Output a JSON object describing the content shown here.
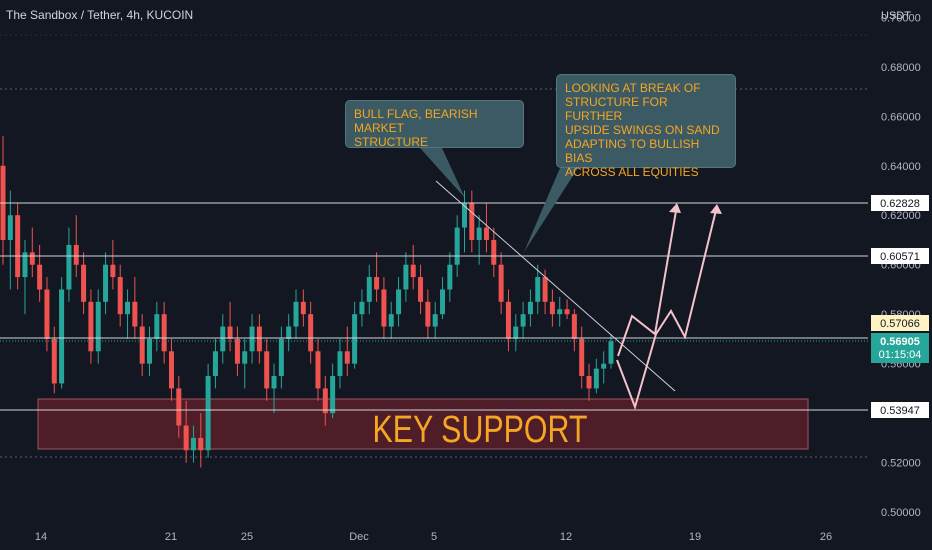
{
  "header": {
    "title": "The Sandbox / Tether, 4h, KUCOIN",
    "currency": "USDT"
  },
  "colors": {
    "background": "#131722",
    "up": "#26a69a",
    "down": "#ef5350",
    "accent_text": "#f5a623",
    "support_zone": "#5a1e28"
  },
  "annotations": {
    "bull_flag": "BULL FLAG, BEARISH MARKET\nSTRUCTURE",
    "break_structure": "LOOKING AT BREAK OF\nSTRUCTURE FOR FURTHER\nUPSIDE SWINGS ON SAND\nADAPTING TO BULLISH BIAS\nACROSS ALL EQUITIES",
    "key_support": "KEY SUPPORT"
  },
  "price_labels": {
    "level_1": "0.62828",
    "level_2": "0.60571",
    "level_3": "0.57066",
    "current": "0.56905",
    "countdown": "01:15:04",
    "level_4": "0.53947"
  },
  "chart_data": {
    "type": "candlestick",
    "y_axis": {
      "ticks": [
        "0.70000",
        "0.68000",
        "0.66000",
        "0.64000",
        "0.62000",
        "0.60000",
        "0.58000",
        "0.56000",
        "0.54000",
        "0.52000",
        "0.50000"
      ],
      "range": [
        0.496,
        0.707
      ]
    },
    "x_axis": {
      "ticks": [
        "14",
        "21",
        "25",
        "Dec",
        "5",
        "12",
        "19",
        "26"
      ]
    },
    "horizontal_levels": [
      0.62828,
      0.60571,
      0.57066,
      0.53947
    ],
    "current_price": 0.56905,
    "support_zone": [
      0.5217,
      0.5425
    ],
    "trendline": {
      "from": [
        1.12,
        0.631
      ],
      "to": [
        10.95,
        0.557
      ]
    },
    "projections": [
      {
        "points": [
          [
            10.4,
            0.554
          ],
          [
            11.1,
            0.574
          ],
          [
            12.0,
            0.566
          ],
          [
            13.9,
            0.628
          ]
        ]
      },
      {
        "points": [
          [
            10.35,
            0.565
          ],
          [
            11.0,
            0.541
          ],
          [
            12.0,
            0.566
          ],
          [
            12.8,
            0.577
          ],
          [
            13.9,
            0.604
          ],
          [
            14.7,
            0.627
          ]
        ]
      }
    ],
    "candles": [
      [
        0.64,
        0.652,
        0.6,
        0.61
      ],
      [
        0.61,
        0.63,
        0.59,
        0.62
      ],
      [
        0.62,
        0.625,
        0.59,
        0.595
      ],
      [
        0.595,
        0.61,
        0.58,
        0.605
      ],
      [
        0.605,
        0.615,
        0.595,
        0.6
      ],
      [
        0.6,
        0.608,
        0.585,
        0.59
      ],
      [
        0.59,
        0.595,
        0.565,
        0.57
      ],
      [
        0.57,
        0.575,
        0.548,
        0.552
      ],
      [
        0.552,
        0.595,
        0.55,
        0.59
      ],
      [
        0.59,
        0.615,
        0.585,
        0.608
      ],
      [
        0.608,
        0.62,
        0.595,
        0.6
      ],
      [
        0.6,
        0.605,
        0.58,
        0.585
      ],
      [
        0.585,
        0.59,
        0.56,
        0.565
      ],
      [
        0.565,
        0.59,
        0.56,
        0.585
      ],
      [
        0.585,
        0.605,
        0.58,
        0.6
      ],
      [
        0.6,
        0.61,
        0.59,
        0.595
      ],
      [
        0.595,
        0.6,
        0.575,
        0.58
      ],
      [
        0.58,
        0.59,
        0.57,
        0.585
      ],
      [
        0.585,
        0.595,
        0.57,
        0.575
      ],
      [
        0.575,
        0.58,
        0.555,
        0.56
      ],
      [
        0.56,
        0.575,
        0.555,
        0.57
      ],
      [
        0.57,
        0.585,
        0.565,
        0.58
      ],
      [
        0.58,
        0.585,
        0.56,
        0.565
      ],
      [
        0.565,
        0.57,
        0.545,
        0.55
      ],
      [
        0.55,
        0.555,
        0.53,
        0.535
      ],
      [
        0.535,
        0.545,
        0.52,
        0.525
      ],
      [
        0.525,
        0.535,
        0.52,
        0.53
      ],
      [
        0.53,
        0.54,
        0.518,
        0.525
      ],
      [
        0.525,
        0.56,
        0.522,
        0.555
      ],
      [
        0.555,
        0.57,
        0.55,
        0.565
      ],
      [
        0.565,
        0.58,
        0.56,
        0.575
      ],
      [
        0.575,
        0.585,
        0.565,
        0.57
      ],
      [
        0.57,
        0.575,
        0.555,
        0.56
      ],
      [
        0.56,
        0.57,
        0.55,
        0.565
      ],
      [
        0.565,
        0.58,
        0.56,
        0.575
      ],
      [
        0.575,
        0.58,
        0.56,
        0.565
      ],
      [
        0.565,
        0.57,
        0.545,
        0.55
      ],
      [
        0.55,
        0.56,
        0.54,
        0.555
      ],
      [
        0.555,
        0.575,
        0.55,
        0.57
      ],
      [
        0.57,
        0.58,
        0.565,
        0.575
      ],
      [
        0.575,
        0.59,
        0.57,
        0.585
      ],
      [
        0.585,
        0.59,
        0.575,
        0.58
      ],
      [
        0.58,
        0.585,
        0.56,
        0.565
      ],
      [
        0.565,
        0.57,
        0.545,
        0.55
      ],
      [
        0.55,
        0.555,
        0.535,
        0.54
      ],
      [
        0.54,
        0.56,
        0.538,
        0.555
      ],
      [
        0.555,
        0.57,
        0.55,
        0.565
      ],
      [
        0.565,
        0.575,
        0.555,
        0.56
      ],
      [
        0.56,
        0.585,
        0.558,
        0.58
      ],
      [
        0.58,
        0.59,
        0.575,
        0.585
      ],
      [
        0.585,
        0.6,
        0.58,
        0.595
      ],
      [
        0.595,
        0.605,
        0.585,
        0.59
      ],
      [
        0.59,
        0.595,
        0.57,
        0.575
      ],
      [
        0.575,
        0.585,
        0.57,
        0.58
      ],
      [
        0.58,
        0.595,
        0.575,
        0.59
      ],
      [
        0.59,
        0.605,
        0.585,
        0.6
      ],
      [
        0.6,
        0.608,
        0.59,
        0.595
      ],
      [
        0.595,
        0.6,
        0.58,
        0.585
      ],
      [
        0.585,
        0.59,
        0.57,
        0.575
      ],
      [
        0.575,
        0.585,
        0.57,
        0.58
      ],
      [
        0.58,
        0.595,
        0.578,
        0.59
      ],
      [
        0.59,
        0.605,
        0.585,
        0.6
      ],
      [
        0.6,
        0.62,
        0.595,
        0.615
      ],
      [
        0.615,
        0.63,
        0.605,
        0.625
      ],
      [
        0.625,
        0.63,
        0.605,
        0.61
      ],
      [
        0.61,
        0.62,
        0.6,
        0.615
      ],
      [
        0.615,
        0.625,
        0.605,
        0.61
      ],
      [
        0.61,
        0.615,
        0.595,
        0.6
      ],
      [
        0.6,
        0.605,
        0.58,
        0.585
      ],
      [
        0.585,
        0.59,
        0.565,
        0.57
      ],
      [
        0.57,
        0.58,
        0.565,
        0.575
      ],
      [
        0.575,
        0.585,
        0.57,
        0.58
      ],
      [
        0.58,
        0.59,
        0.575,
        0.585
      ],
      [
        0.585,
        0.6,
        0.58,
        0.595
      ],
      [
        0.595,
        0.598,
        0.58,
        0.585
      ],
      [
        0.585,
        0.59,
        0.575,
        0.58
      ],
      [
        0.58,
        0.587,
        0.575,
        0.582
      ],
      [
        0.582,
        0.586,
        0.578,
        0.58
      ],
      [
        0.58,
        0.582,
        0.565,
        0.57
      ],
      [
        0.57,
        0.575,
        0.55,
        0.555
      ],
      [
        0.555,
        0.56,
        0.545,
        0.55
      ],
      [
        0.55,
        0.562,
        0.548,
        0.558
      ],
      [
        0.558,
        0.565,
        0.552,
        0.56
      ],
      [
        0.56,
        0.572,
        0.558,
        0.569
      ]
    ]
  }
}
